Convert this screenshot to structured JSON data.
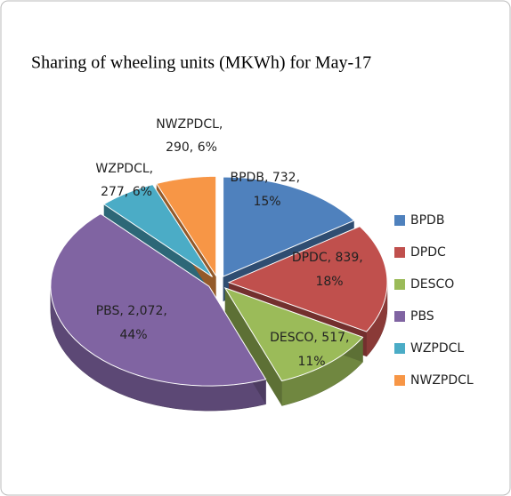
{
  "chart_data": {
    "type": "pie",
    "title": "Sharing of wheeling units (MKWh) for May-17",
    "categories": [
      "BPDB",
      "DPDC",
      "DESCO",
      "PBS",
      "WZPDCL",
      "NWZPDCL"
    ],
    "values": [
      732,
      839,
      517,
      2072,
      277,
      290
    ],
    "value_labels": [
      "732",
      "839",
      "517",
      "2,072",
      "277",
      "290"
    ],
    "shares": [
      15,
      18,
      11,
      44,
      6,
      6
    ],
    "share_labels": [
      "15%",
      "18%",
      "11%",
      "44%",
      "6%",
      "6%"
    ],
    "label_separator": ", ",
    "colors": [
      "#4f81bd",
      "#c0504d",
      "#9bbb59",
      "#8064a2",
      "#4bacc6",
      "#f79646"
    ],
    "legend": "right"
  }
}
